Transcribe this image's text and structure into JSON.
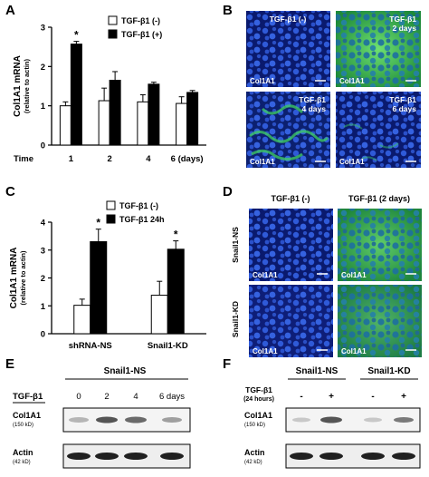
{
  "panels": {
    "A": "A",
    "B": "B",
    "C": "C",
    "D": "D",
    "E": "E",
    "F": "F"
  },
  "chart_data": [
    {
      "panel": "A",
      "type": "bar",
      "ylabel": "Col1A1 mRNA",
      "ylabel2": "(relative to actin)",
      "xlabel": "Time",
      "categories": [
        "1",
        "2",
        "4",
        "6 (days)"
      ],
      "ylim": [
        0,
        3
      ],
      "yticks": [
        "0",
        "1",
        "2",
        "3"
      ],
      "series": [
        {
          "name": "TGF-β1 (-)",
          "color": "#ffffff",
          "values": [
            1.0,
            1.13,
            1.1,
            1.06
          ],
          "errors": [
            0.1,
            0.32,
            0.18,
            0.17
          ]
        },
        {
          "name": "TGF-β1 (+)",
          "color": "#000000",
          "values": [
            2.57,
            1.65,
            1.55,
            1.34
          ],
          "errors": [
            0.07,
            0.22,
            0.05,
            0.05
          ]
        }
      ],
      "significance": [
        "*",
        "",
        "",
        ""
      ]
    },
    {
      "panel": "C",
      "type": "bar",
      "ylabel": "Col1A1 mRNA",
      "ylabel2": "(relative to actin)",
      "categories": [
        "shRNA-NS",
        "Snail1-KD"
      ],
      "ylim": [
        0,
        4
      ],
      "yticks": [
        "0",
        "1",
        "2",
        "3",
        "4"
      ],
      "series": [
        {
          "name": "TGF-β1 (-)",
          "color": "#ffffff",
          "values": [
            1.02,
            1.38
          ],
          "errors": [
            0.22,
            0.5
          ]
        },
        {
          "name": "TGF-β1 24h",
          "color": "#000000",
          "values": [
            3.3,
            3.03
          ],
          "errors": [
            0.45,
            0.3
          ]
        }
      ],
      "significance": [
        "*",
        "*"
      ]
    }
  ],
  "panelB": {
    "tiles": [
      {
        "condition": "TGF-β1 (-)",
        "condition2": "",
        "stain": "Col1A1"
      },
      {
        "condition": "TGF-β1",
        "condition2": "2 days",
        "stain": "Col1A1"
      },
      {
        "condition": "TGF-β1",
        "condition2": "4 days",
        "stain": "Col1A1"
      },
      {
        "condition": "TGF-β1",
        "condition2": "6 days",
        "stain": "Col1A1"
      }
    ]
  },
  "panelD": {
    "col_headers": [
      "TGF-β1 (-)",
      "TGF-β1 (2 days)"
    ],
    "row_labels": [
      "Snail1-NS",
      "Snail1-KD"
    ],
    "stain": "Col1A1"
  },
  "panelE": {
    "title": "Snail1-NS",
    "condition_label": "TGF-β1",
    "lanes": [
      "0",
      "2",
      "4",
      "6 days"
    ],
    "blot1_label": "Col1A1",
    "blot1_size": "(150 kD)",
    "blot2_label": "Actin",
    "blot2_size": "(42 kD)"
  },
  "panelF": {
    "groups": [
      "Snail1-NS",
      "Snail1-KD"
    ],
    "condition_label": "TGF-β1",
    "condition_label2": "(24 hours)",
    "lanes": [
      "-",
      "+",
      "-",
      "+"
    ],
    "blot1_label": "Col1A1",
    "blot1_size": "(150 kD)",
    "blot2_label": "Actin",
    "blot2_size": "(42 kD)"
  },
  "colors": {
    "micro_bg": "#0a1a6e",
    "nucleus": "#2f5ad8",
    "green": "#3fd060",
    "text_on_micro": "#ffffff",
    "scale_bar": "#ffffff"
  }
}
